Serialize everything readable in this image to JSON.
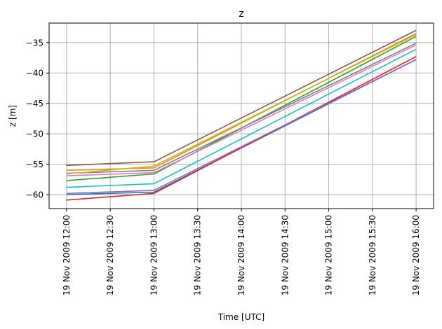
{
  "chart_data": {
    "type": "line",
    "title": "z",
    "xlabel": "Time  [UTC]",
    "ylabel": "z  [m]",
    "x": [
      "19 Nov 2009 12:00",
      "19 Nov 2009 13:00",
      "19 Nov 2009 16:00"
    ],
    "xticks": [
      "19 Nov 2009 12:00",
      "19 Nov 2009 12:30",
      "19 Nov 2009 13:00",
      "19 Nov 2009 13:30",
      "19 Nov 2009 14:00",
      "19 Nov 2009 14:30",
      "19 Nov 2009 15:00",
      "19 Nov 2009 15:30",
      "19 Nov 2009 16:00"
    ],
    "yticks": [
      "-35",
      "-40",
      "-45",
      "-50",
      "-55",
      "-60"
    ],
    "xlim": [
      "19 Nov 2009 11:48",
      "19 Nov 2009 16:12"
    ],
    "ylim": [
      -62.3,
      -31.8
    ],
    "grid": true,
    "series": [
      {
        "color": "#1f77b4",
        "values": [
          -60.0,
          -59.6,
          -37.8
        ]
      },
      {
        "color": "#ff7f0e",
        "values": [
          -56.0,
          -55.6,
          -33.5
        ]
      },
      {
        "color": "#2ca02c",
        "values": [
          -57.7,
          -56.6,
          -34.0
        ]
      },
      {
        "color": "#d62728",
        "values": [
          -60.9,
          -59.8,
          -37.3
        ]
      },
      {
        "color": "#9467bd",
        "values": [
          -59.8,
          -59.3,
          -37.8
        ]
      },
      {
        "color": "#8c564b",
        "values": [
          -55.2,
          -54.6,
          -33.0
        ]
      },
      {
        "color": "#e377c2",
        "values": [
          -56.9,
          -56.4,
          -35.4
        ]
      },
      {
        "color": "#7f7f7f",
        "values": [
          -56.5,
          -56.0,
          -35.1
        ]
      },
      {
        "color": "#bcbd22",
        "values": [
          -56.6,
          -55.3,
          -33.7
        ]
      },
      {
        "color": "#17becf",
        "values": [
          -58.8,
          -58.2,
          -36.1
        ]
      }
    ]
  }
}
